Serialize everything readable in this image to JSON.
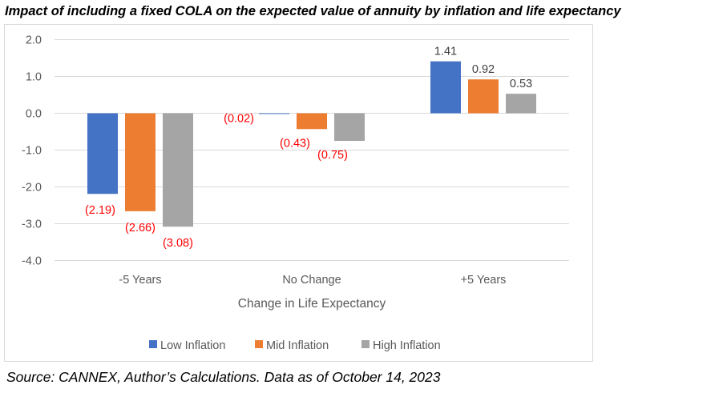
{
  "title": "Impact of including a fixed COLA on the expected value of annuity by inflation and life expectancy",
  "source": "Source: CANNEX, Author’s Calculations. Data as of October 14, 2023",
  "chart_data": {
    "type": "bar",
    "title": "Impact of including a fixed COLA on the expected value of annuity by inflation and life expectancy",
    "xlabel": "Change in Life Expectancy",
    "ylabel": "",
    "categories": [
      "-5 Years",
      "No Change",
      "+5 Years"
    ],
    "ylim": [
      -4.0,
      2.0
    ],
    "yticks": [
      2.0,
      1.0,
      0.0,
      -1.0,
      -2.0,
      -3.0,
      -4.0
    ],
    "ytick_labels": [
      "2.0",
      "1.0",
      "0.0",
      "-1.0",
      "-2.0",
      "-3.0",
      "-4.0"
    ],
    "grid": true,
    "legend_position": "bottom",
    "series": [
      {
        "name": "Low Inflation",
        "color": "#4472c4",
        "values": [
          -2.19,
          -0.02,
          1.41
        ],
        "labels": [
          "(2.19)",
          "(0.02)",
          "1.41"
        ]
      },
      {
        "name": "Mid Inflation",
        "color": "#ed7d31",
        "values": [
          -2.66,
          -0.43,
          0.92
        ],
        "labels": [
          "(2.66)",
          "(0.43)",
          "0.92"
        ]
      },
      {
        "name": "High Inflation",
        "color": "#a5a5a5",
        "values": [
          -3.08,
          -0.75,
          0.53
        ],
        "labels": [
          "(3.08)",
          "(0.75)",
          "0.53"
        ]
      }
    ],
    "negative_label_color": "#ff0000",
    "positive_label_color": "#404040"
  }
}
